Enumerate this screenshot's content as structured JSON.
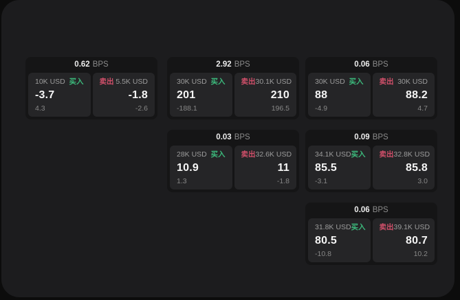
{
  "page": {
    "background": "#0c0c0c",
    "panel_background": "#1c1c1e"
  },
  "colors": {
    "buy_green": "#3cba7c",
    "sell_red": "#d1506a",
    "card_background": "#151516",
    "tile_background": "#252527",
    "value_text": "#f5f5f5",
    "muted_text": "#9c9c9c"
  },
  "labels": {
    "bps_unit": "BPS",
    "buy": "买入",
    "sell": "卖出"
  },
  "cards": [
    {
      "bps": "0.62",
      "buy": {
        "size": "10K USD",
        "value": "-3.7",
        "delta": "4.3"
      },
      "sell": {
        "size": "5.5K USD",
        "value": "-1.8",
        "delta": "-2.6"
      }
    },
    {
      "bps": "2.92",
      "buy": {
        "size": "30K USD",
        "value": "201",
        "delta": "-188.1"
      },
      "sell": {
        "size": "30.1K USD",
        "value": "210",
        "delta": "196.5"
      }
    },
    {
      "bps": "0.06",
      "buy": {
        "size": "30K USD",
        "value": "88",
        "delta": "-4.9"
      },
      "sell": {
        "size": "30K USD",
        "value": "88.2",
        "delta": "4.7"
      }
    },
    {
      "bps": "0.03",
      "buy": {
        "size": "28K USD",
        "value": "10.9",
        "delta": "1.3"
      },
      "sell": {
        "size": "32.6K USD",
        "value": "11",
        "delta": "-1.8"
      }
    },
    {
      "bps": "0.09",
      "buy": {
        "size": "34.1K USD",
        "value": "85.5",
        "delta": "-3.1"
      },
      "sell": {
        "size": "32.8K USD",
        "value": "85.8",
        "delta": "3.0"
      }
    },
    {
      "bps": "0.06",
      "buy": {
        "size": "31.8K USD",
        "value": "80.5",
        "delta": "-10.8"
      },
      "sell": {
        "size": "39.1K USD",
        "value": "80.7",
        "delta": "10.2"
      }
    }
  ]
}
